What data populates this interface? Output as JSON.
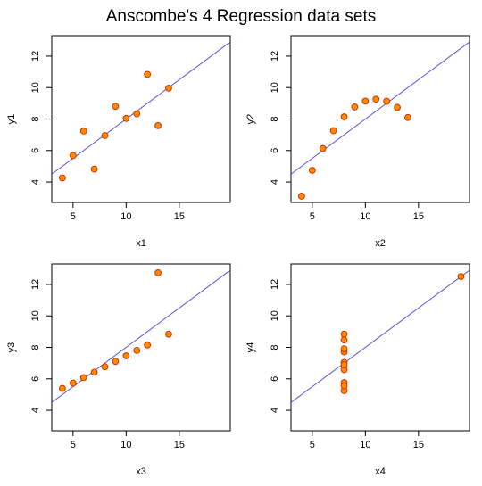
{
  "title": "Anscombe's 4 Regression data sets",
  "colors": {
    "point_fill": "#FF8C00",
    "point_stroke": "#CC3300",
    "regression_line": "#5555DD",
    "axis": "#000000",
    "background": "#FFFFFF"
  },
  "chart_data": [
    {
      "type": "scatter",
      "xlabel": "x1",
      "ylabel": "y1",
      "xlim": [
        3,
        19.8
      ],
      "ylim": [
        2.7,
        13.3
      ],
      "xticks": [
        5,
        10,
        15
      ],
      "yticks": [
        4,
        6,
        8,
        10,
        12
      ],
      "grid": false,
      "points": [
        {
          "x": 10,
          "y": 8.04
        },
        {
          "x": 8,
          "y": 6.95
        },
        {
          "x": 13,
          "y": 7.58
        },
        {
          "x": 9,
          "y": 8.81
        },
        {
          "x": 11,
          "y": 8.33
        },
        {
          "x": 14,
          "y": 9.96
        },
        {
          "x": 6,
          "y": 7.24
        },
        {
          "x": 4,
          "y": 4.26
        },
        {
          "x": 12,
          "y": 10.84
        },
        {
          "x": 7,
          "y": 4.82
        },
        {
          "x": 5,
          "y": 5.68
        }
      ],
      "regression": {
        "intercept": 3.0,
        "slope": 0.5
      }
    },
    {
      "type": "scatter",
      "xlabel": "x2",
      "ylabel": "y2",
      "xlim": [
        3,
        19.8
      ],
      "ylim": [
        2.7,
        13.3
      ],
      "xticks": [
        5,
        10,
        15
      ],
      "yticks": [
        4,
        6,
        8,
        10,
        12
      ],
      "grid": false,
      "points": [
        {
          "x": 10,
          "y": 9.14
        },
        {
          "x": 8,
          "y": 8.14
        },
        {
          "x": 13,
          "y": 8.74
        },
        {
          "x": 9,
          "y": 8.77
        },
        {
          "x": 11,
          "y": 9.26
        },
        {
          "x": 14,
          "y": 8.1
        },
        {
          "x": 6,
          "y": 6.13
        },
        {
          "x": 4,
          "y": 3.1
        },
        {
          "x": 12,
          "y": 9.13
        },
        {
          "x": 7,
          "y": 7.26
        },
        {
          "x": 5,
          "y": 4.74
        }
      ],
      "regression": {
        "intercept": 3.0,
        "slope": 0.5
      }
    },
    {
      "type": "scatter",
      "xlabel": "x3",
      "ylabel": "y3",
      "xlim": [
        3,
        19.8
      ],
      "ylim": [
        2.7,
        13.3
      ],
      "xticks": [
        5,
        10,
        15
      ],
      "yticks": [
        4,
        6,
        8,
        10,
        12
      ],
      "grid": false,
      "points": [
        {
          "x": 10,
          "y": 7.46
        },
        {
          "x": 8,
          "y": 6.77
        },
        {
          "x": 13,
          "y": 12.74
        },
        {
          "x": 9,
          "y": 7.11
        },
        {
          "x": 11,
          "y": 7.81
        },
        {
          "x": 14,
          "y": 8.84
        },
        {
          "x": 6,
          "y": 6.08
        },
        {
          "x": 4,
          "y": 5.39
        },
        {
          "x": 12,
          "y": 8.15
        },
        {
          "x": 7,
          "y": 6.42
        },
        {
          "x": 5,
          "y": 5.73
        }
      ],
      "regression": {
        "intercept": 3.0,
        "slope": 0.5
      }
    },
    {
      "type": "scatter",
      "xlabel": "x4",
      "ylabel": "y4",
      "xlim": [
        3,
        19.8
      ],
      "ylim": [
        2.7,
        13.3
      ],
      "xticks": [
        5,
        10,
        15
      ],
      "yticks": [
        4,
        6,
        8,
        10,
        12
      ],
      "grid": false,
      "points": [
        {
          "x": 8,
          "y": 6.58
        },
        {
          "x": 8,
          "y": 5.76
        },
        {
          "x": 8,
          "y": 7.71
        },
        {
          "x": 8,
          "y": 8.84
        },
        {
          "x": 8,
          "y": 8.47
        },
        {
          "x": 8,
          "y": 7.04
        },
        {
          "x": 8,
          "y": 5.25
        },
        {
          "x": 19,
          "y": 12.5
        },
        {
          "x": 8,
          "y": 5.56
        },
        {
          "x": 8,
          "y": 7.91
        },
        {
          "x": 8,
          "y": 6.89
        }
      ],
      "regression": {
        "intercept": 3.0,
        "slope": 0.5
      }
    }
  ]
}
